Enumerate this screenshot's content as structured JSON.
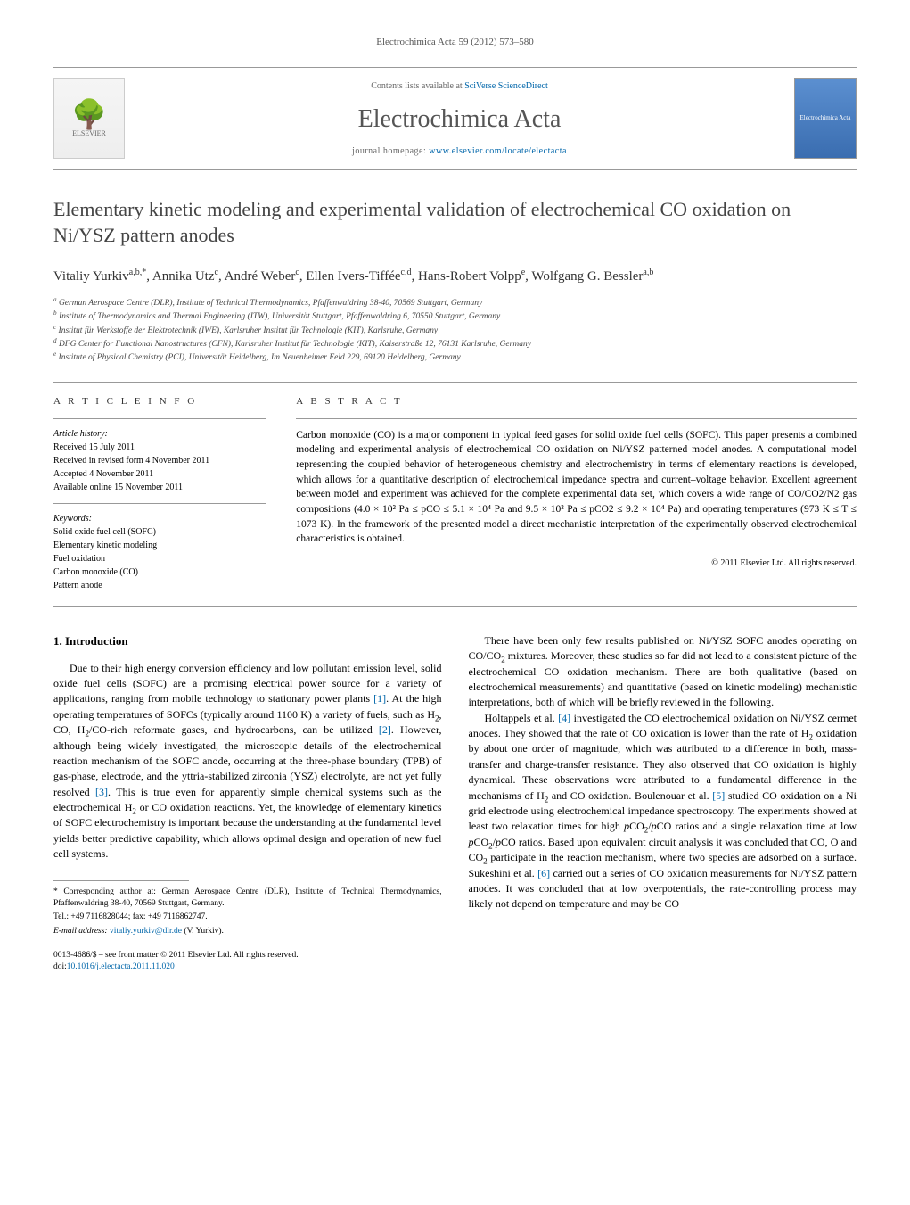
{
  "journal_ref": "Electrochimica Acta 59 (2012) 573–580",
  "header": {
    "contents_prefix": "Contents lists available at ",
    "contents_link": "SciVerse ScienceDirect",
    "journal_title": "Electrochimica Acta",
    "homepage_prefix": "journal homepage: ",
    "homepage_link": "www.elsevier.com/locate/electacta",
    "publisher_name": "ELSEVIER",
    "cover_text": "Electrochimica Acta"
  },
  "title": "Elementary kinetic modeling and experimental validation of electrochemical CO oxidation on Ni/YSZ pattern anodes",
  "authors_html": "Vitaliy Yurkiv<sup>a,b,*</sup>, Annika Utz<sup>c</sup>, André Weber<sup>c</sup>, Ellen Ivers-Tiffée<sup>c,d</sup>, Hans-Robert Volpp<sup>e</sup>, Wolfgang G. Bessler<sup>a,b</sup>",
  "affiliations": [
    "a German Aerospace Centre (DLR), Institute of Technical Thermodynamics, Pfaffenwaldring 38-40, 70569 Stuttgart, Germany",
    "b Institute of Thermodynamics and Thermal Engineering (ITW), Universität Stuttgart, Pfaffenwaldring 6, 70550 Stuttgart, Germany",
    "c Institut für Werkstoffe der Elektrotechnik (IWE), Karlsruher Institut für Technologie (KIT), Karlsruhe, Germany",
    "d DFG Center for Functional Nanostructures (CFN), Karlsruher Institut für Technologie (KIT), Kaiserstraße 12, 76131 Karlsruhe, Germany",
    "e Institute of Physical Chemistry (PCI), Universität Heidelberg, Im Neuenheimer Feld 229, 69120 Heidelberg, Germany"
  ],
  "article_info": {
    "heading": "A R T I C L E   I N F O",
    "history_label": "Article history:",
    "history": [
      "Received 15 July 2011",
      "Received in revised form 4 November 2011",
      "Accepted 4 November 2011",
      "Available online 15 November 2011"
    ],
    "keywords_label": "Keywords:",
    "keywords": [
      "Solid oxide fuel cell (SOFC)",
      "Elementary kinetic modeling",
      "Fuel oxidation",
      "Carbon monoxide (CO)",
      "Pattern anode"
    ]
  },
  "abstract": {
    "heading": "A B S T R A C T",
    "text": "Carbon monoxide (CO) is a major component in typical feed gases for solid oxide fuel cells (SOFC). This paper presents a combined modeling and experimental analysis of electrochemical CO oxidation on Ni/YSZ patterned model anodes. A computational model representing the coupled behavior of heterogeneous chemistry and electrochemistry in terms of elementary reactions is developed, which allows for a quantitative description of electrochemical impedance spectra and current–voltage behavior. Excellent agreement between model and experiment was achieved for the complete experimental data set, which covers a wide range of CO/CO2/N2 gas compositions (4.0 × 10² Pa ≤ pCO ≤ 5.1 × 10⁴ Pa and 9.5 × 10² Pa ≤ pCO2 ≤ 9.2 × 10⁴ Pa) and operating temperatures (973 K ≤ T ≤ 1073 K). In the framework of the presented model a direct mechanistic interpretation of the experimentally observed electrochemical characteristics is obtained.",
    "copyright": "© 2011 Elsevier Ltd. All rights reserved."
  },
  "body": {
    "section_heading": "1.  Introduction",
    "col1_p1": "Due to their high energy conversion efficiency and low pollutant emission level, solid oxide fuel cells (SOFC) are a promising electrical power source for a variety of applications, ranging from mobile technology to stationary power plants [1]. At the high operating temperatures of SOFCs (typically around 1100 K) a variety of fuels, such as H2, CO, H2/CO-rich reformate gases, and hydrocarbons, can be utilized [2]. However, although being widely investigated, the microscopic details of the electrochemical reaction mechanism of the SOFC anode, occurring at the three-phase boundary (TPB) of gas-phase, electrode, and the yttria-stabilized zirconia (YSZ) electrolyte, are not yet fully resolved [3]. This is true even for apparently simple chemical systems such as the electrochemical H2 or CO oxidation reactions. Yet, the knowledge of elementary kinetics of SOFC electrochemistry is important because the understanding at the fundamental level yields better predictive capability, which allows optimal design and operation of new fuel cell systems.",
    "col2_p1": "There have been only few results published on Ni/YSZ SOFC anodes operating on CO/CO2 mixtures. Moreover, these studies so far did not lead to a consistent picture of the electrochemical CO oxidation mechanism. There are both qualitative (based on electrochemical measurements) and quantitative (based on kinetic modeling) mechanistic interpretations, both of which will be briefly reviewed in the following.",
    "col2_p2": "Holtappels et al. [4] investigated the CO electrochemical oxidation on Ni/YSZ cermet anodes. They showed that the rate of CO oxidation is lower than the rate of H2 oxidation by about one order of magnitude, which was attributed to a difference in both, mass-transfer and charge-transfer resistance. They also observed that CO oxidation is highly dynamical. These observations were attributed to a fundamental difference in the mechanisms of H2 and CO oxidation. Boulenouar et al. [5] studied CO oxidation on a Ni grid electrode using electrochemical impedance spectroscopy. The experiments showed at least two relaxation times for high pCO2/pCO ratios and a single relaxation time at low pCO2/pCO ratios. Based upon equivalent circuit analysis it was concluded that CO, O and CO2 participate in the reaction mechanism, where two species are adsorbed on a surface. Sukeshini et al. [6] carried out a series of CO oxidation measurements for Ni/YSZ pattern anodes. It was concluded that at low overpotentials, the rate-controlling process may likely not depend on temperature and may be CO"
  },
  "footnotes": {
    "corr": "* Corresponding author at: German Aerospace Centre (DLR), Institute of Technical Thermodynamics, Pfaffenwaldring 38-40, 70569 Stuttgart, Germany.",
    "tel": "Tel.: +49 7116828044; fax: +49 7116862747.",
    "email_label": "E-mail address: ",
    "email": "vitaliy.yurkiv@dlr.de",
    "email_suffix": " (V. Yurkiv)."
  },
  "doi": {
    "line1": "0013-4686/$ – see front matter © 2011 Elsevier Ltd. All rights reserved.",
    "doi_prefix": "doi:",
    "doi_link": "10.1016/j.electacta.2011.11.020"
  }
}
